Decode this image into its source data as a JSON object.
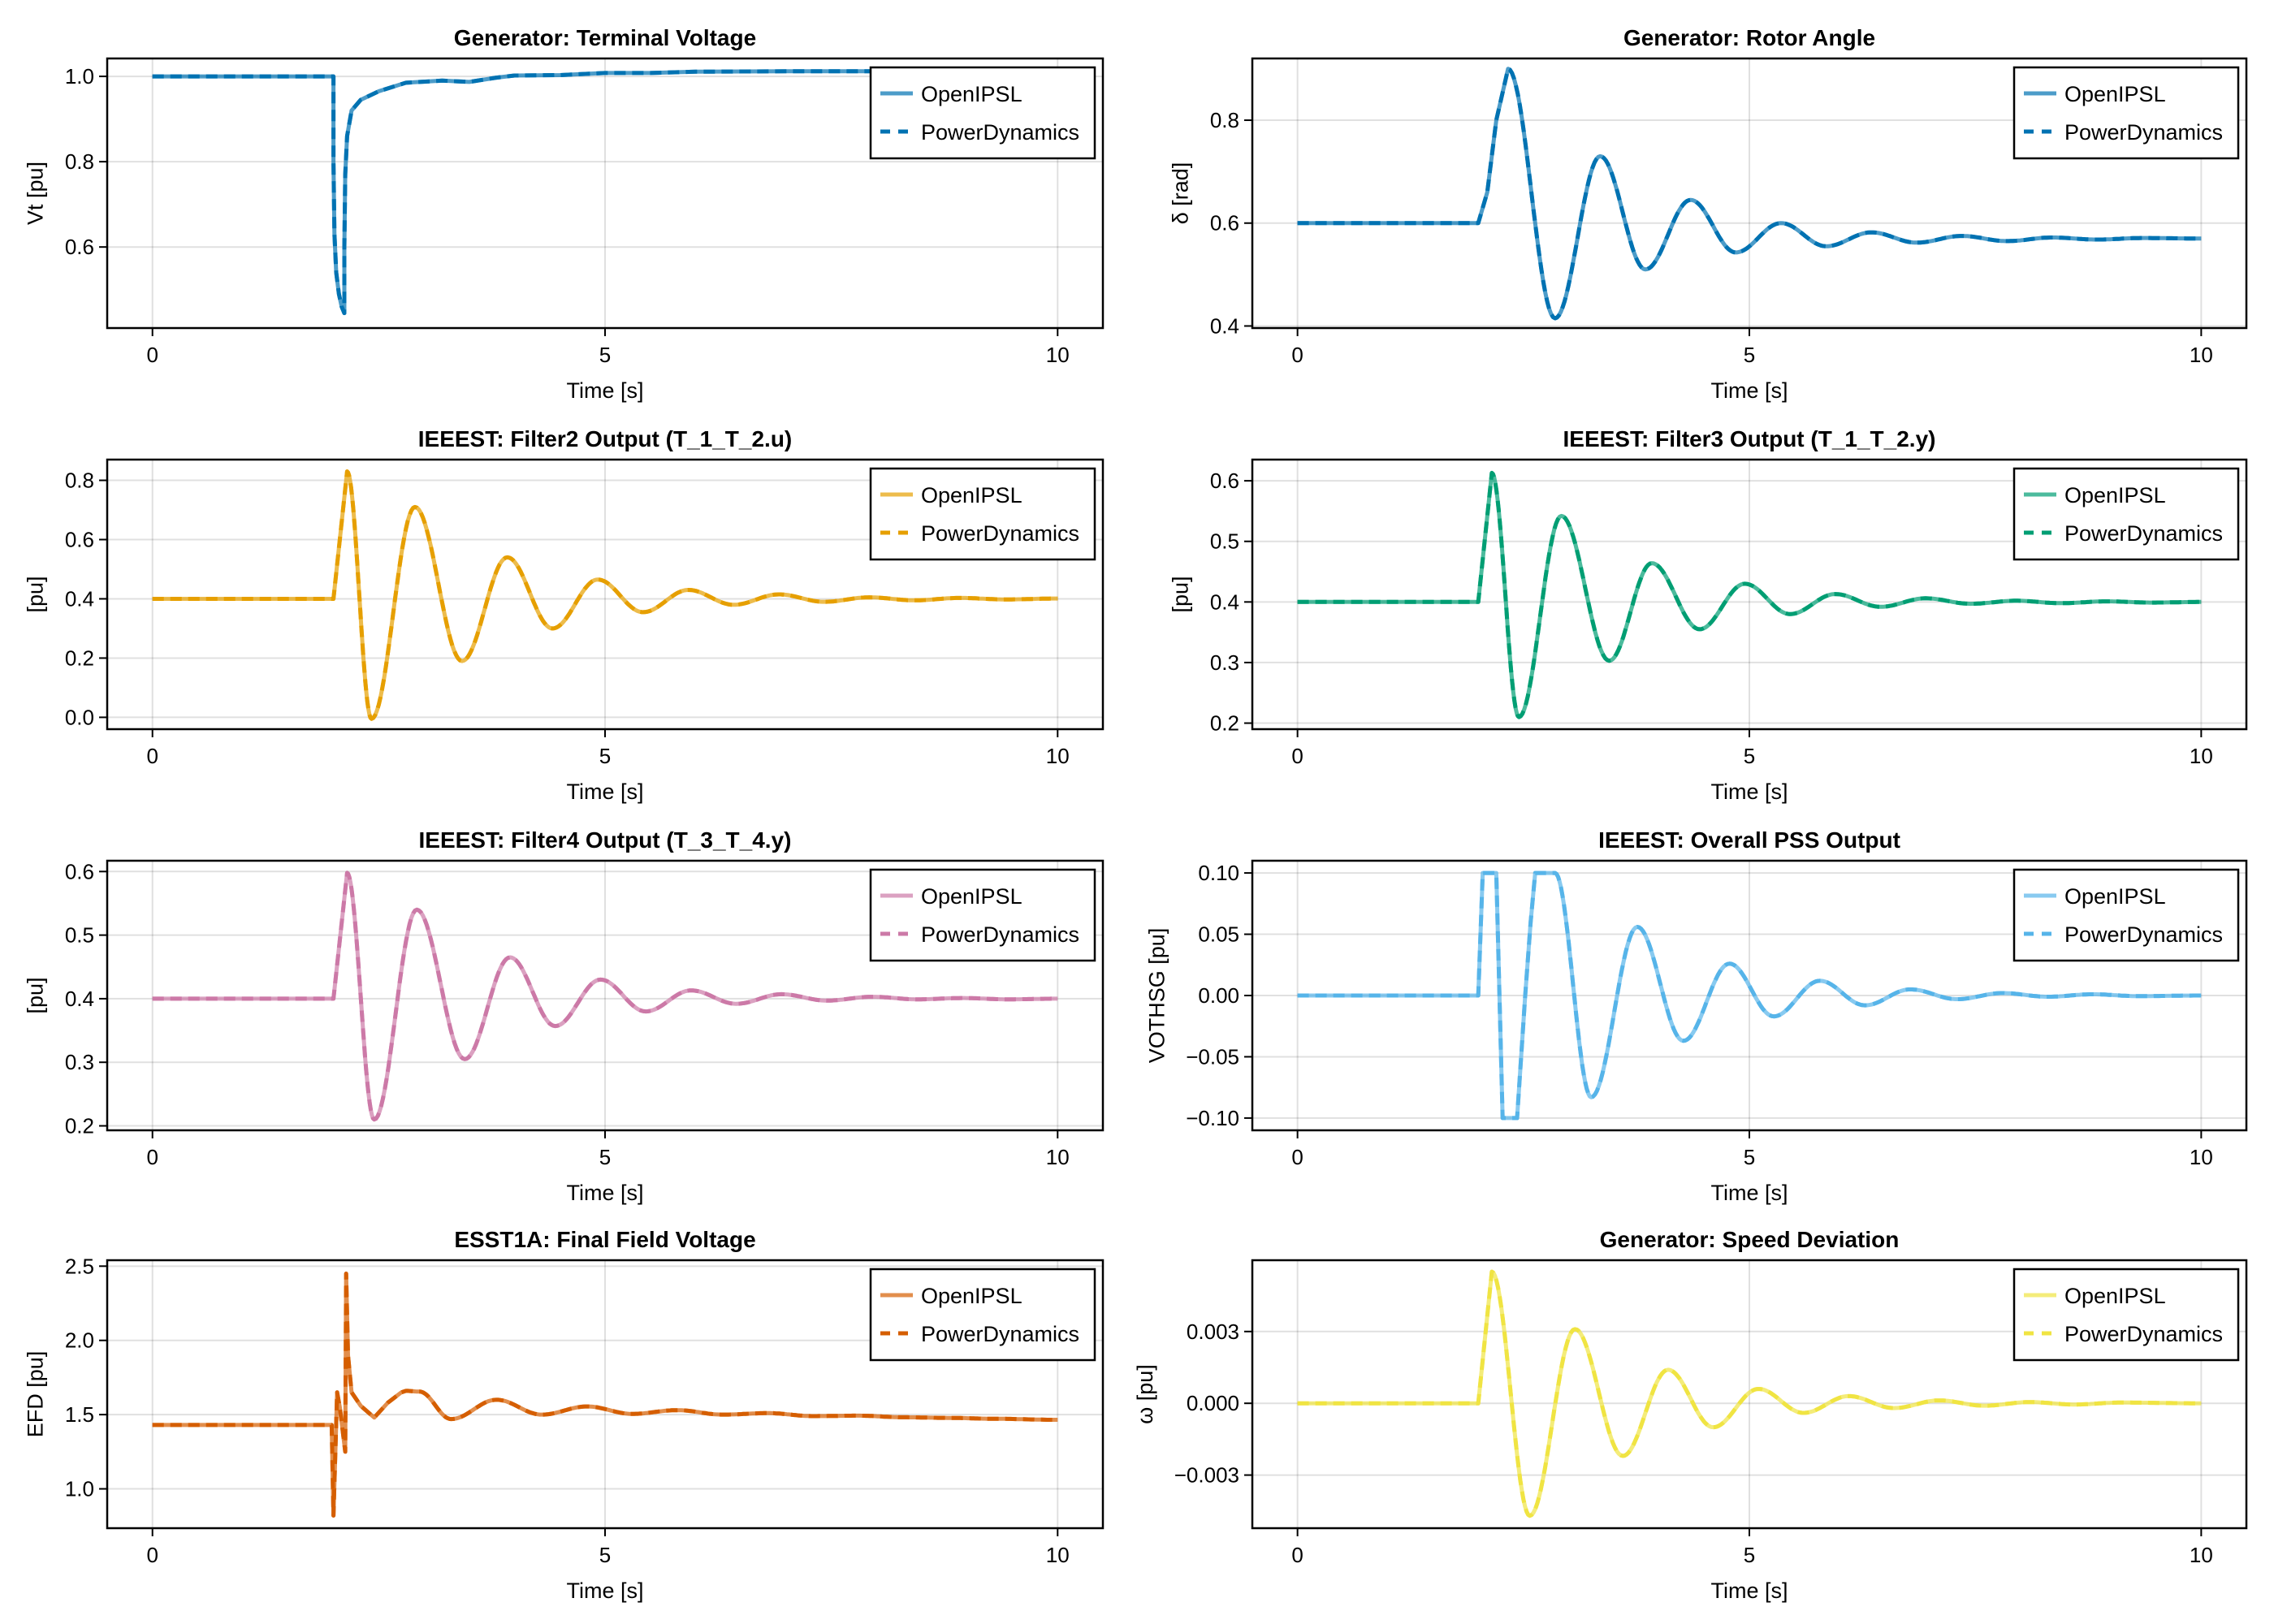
{
  "figure": {
    "layout": "4 rows x 2 columns",
    "legend_entries": [
      "OpenIPSL",
      "PowerDynamics"
    ],
    "legend_placement": "top-right"
  },
  "chart_data": [
    {
      "id": "terminal-voltage",
      "type": "line",
      "title": "Generator: Terminal Voltage",
      "xlabel": "Time [s]",
      "ylabel": "Vt [pu]",
      "xlim": [
        -0.5,
        10.5
      ],
      "ylim": [
        0.41,
        1.042
      ],
      "xticks": [
        {
          "v": 0,
          "label": "0"
        },
        {
          "v": 5,
          "label": "5"
        },
        {
          "v": 10,
          "label": "10"
        }
      ],
      "yticks": [
        {
          "v": 0.6,
          "label": "0.6"
        },
        {
          "v": 0.8,
          "label": "0.8"
        },
        {
          "v": 1.0,
          "label": "1.0"
        }
      ],
      "color": "#0072B2",
      "grid": true,
      "legend": "top-right",
      "series": [
        {
          "name": "OpenIPSL",
          "style": "solid"
        },
        {
          "name": "PowerDynamics",
          "style": "dashed"
        }
      ],
      "x": [
        0,
        2.0,
        2.0,
        2.01,
        2.03,
        2.06,
        2.09,
        2.12,
        2.12,
        2.13,
        2.15,
        2.2,
        2.3,
        2.5,
        2.8,
        3.2,
        3.5,
        3.8,
        4.0,
        4.5,
        5.0,
        5.5,
        6.0,
        7.0,
        8.0,
        9.0,
        10.0
      ],
      "y": [
        1.0,
        1.0,
        0.8,
        0.63,
        0.54,
        0.49,
        0.46,
        0.445,
        0.6,
        0.77,
        0.86,
        0.92,
        0.945,
        0.965,
        0.985,
        0.99,
        0.987,
        0.997,
        1.002,
        1.003,
        1.008,
        1.008,
        1.011,
        1.012,
        1.012,
        1.012,
        1.012
      ]
    },
    {
      "id": "rotor-angle",
      "type": "line",
      "title": "Generator: Rotor Angle",
      "xlabel": "Time [s]",
      "ylabel": "δ [rad]",
      "xlim": [
        -0.5,
        10.5
      ],
      "ylim": [
        0.396,
        0.92
      ],
      "xticks": [
        {
          "v": 0,
          "label": "0"
        },
        {
          "v": 5,
          "label": "5"
        },
        {
          "v": 10,
          "label": "10"
        }
      ],
      "yticks": [
        {
          "v": 0.4,
          "label": "0.4"
        },
        {
          "v": 0.6,
          "label": "0.6"
        },
        {
          "v": 0.8,
          "label": "0.8"
        }
      ],
      "color": "#0072B2",
      "grid": true,
      "legend": "top-right",
      "series": [
        {
          "name": "OpenIPSL",
          "style": "solid"
        },
        {
          "name": "PowerDynamics",
          "style": "dashed"
        }
      ],
      "damped": {
        "t0": 2.0,
        "base": 0.6,
        "final": 0.57,
        "rise": [
          [
            2.0,
            0.6
          ],
          [
            2.1,
            0.66
          ],
          [
            2.2,
            0.8
          ],
          [
            2.33,
            0.9
          ]
        ],
        "extrema": [
          [
            2.33,
            0.9
          ],
          [
            2.85,
            0.415
          ],
          [
            3.35,
            0.73
          ],
          [
            3.85,
            0.51
          ],
          [
            4.35,
            0.645
          ],
          [
            4.85,
            0.543
          ],
          [
            5.35,
            0.6
          ],
          [
            5.85,
            0.555
          ],
          [
            6.35,
            0.582
          ],
          [
            6.85,
            0.562
          ],
          [
            7.35,
            0.575
          ],
          [
            7.85,
            0.565
          ],
          [
            8.35,
            0.572
          ],
          [
            8.85,
            0.568
          ],
          [
            9.35,
            0.571
          ],
          [
            10.0,
            0.57
          ]
        ]
      }
    },
    {
      "id": "filter2-output",
      "type": "line",
      "title": "IEEEST: Filter2 Output (T_1_T_2.u)",
      "xlabel": "Time [s]",
      "ylabel": "[pu]",
      "xlim": [
        -0.5,
        10.5
      ],
      "ylim": [
        -0.04,
        0.87
      ],
      "xticks": [
        {
          "v": 0,
          "label": "0"
        },
        {
          "v": 5,
          "label": "5"
        },
        {
          "v": 10,
          "label": "10"
        }
      ],
      "yticks": [
        {
          "v": 0.0,
          "label": "0.0"
        },
        {
          "v": 0.2,
          "label": "0.2"
        },
        {
          "v": 0.4,
          "label": "0.4"
        },
        {
          "v": 0.6,
          "label": "0.6"
        },
        {
          "v": 0.8,
          "label": "0.8"
        }
      ],
      "color": "#E69F00",
      "grid": true,
      "legend": "top-right",
      "series": [
        {
          "name": "OpenIPSL",
          "style": "solid"
        },
        {
          "name": "PowerDynamics",
          "style": "dashed"
        }
      ],
      "damped": {
        "t0": 2.0,
        "base": 0.4,
        "final": 0.4,
        "rise": [
          [
            2.0,
            0.4
          ],
          [
            2.15,
            0.83
          ]
        ],
        "extrema": [
          [
            2.15,
            0.83
          ],
          [
            2.42,
            -0.005
          ],
          [
            2.9,
            0.71
          ],
          [
            3.42,
            0.19
          ],
          [
            3.92,
            0.54
          ],
          [
            4.42,
            0.3
          ],
          [
            4.92,
            0.465
          ],
          [
            5.42,
            0.355
          ],
          [
            5.92,
            0.43
          ],
          [
            6.42,
            0.38
          ],
          [
            6.92,
            0.415
          ],
          [
            7.42,
            0.39
          ],
          [
            7.92,
            0.405
          ],
          [
            8.42,
            0.395
          ],
          [
            8.92,
            0.403
          ],
          [
            9.42,
            0.398
          ],
          [
            10.0,
            0.401
          ]
        ]
      }
    },
    {
      "id": "filter3-output",
      "type": "line",
      "title": "IEEEST: Filter3 Output (T_1_T_2.y)",
      "xlabel": "Time [s]",
      "ylabel": "[pu]",
      "xlim": [
        -0.5,
        10.5
      ],
      "ylim": [
        0.19,
        0.635
      ],
      "xticks": [
        {
          "v": 0,
          "label": "0"
        },
        {
          "v": 5,
          "label": "5"
        },
        {
          "v": 10,
          "label": "10"
        }
      ],
      "yticks": [
        {
          "v": 0.2,
          "label": "0.2"
        },
        {
          "v": 0.3,
          "label": "0.3"
        },
        {
          "v": 0.4,
          "label": "0.4"
        },
        {
          "v": 0.5,
          "label": "0.5"
        },
        {
          "v": 0.6,
          "label": "0.6"
        }
      ],
      "color": "#009E73",
      "grid": true,
      "legend": "top-right",
      "series": [
        {
          "name": "OpenIPSL",
          "style": "solid"
        },
        {
          "name": "PowerDynamics",
          "style": "dashed"
        }
      ],
      "damped": {
        "t0": 2.0,
        "base": 0.4,
        "final": 0.4,
        "rise": [
          [
            2.0,
            0.4
          ],
          [
            2.15,
            0.613
          ]
        ],
        "extrema": [
          [
            2.15,
            0.613
          ],
          [
            2.45,
            0.21
          ],
          [
            2.92,
            0.542
          ],
          [
            3.45,
            0.303
          ],
          [
            3.92,
            0.464
          ],
          [
            4.45,
            0.355
          ],
          [
            4.95,
            0.43
          ],
          [
            5.45,
            0.38
          ],
          [
            5.95,
            0.413
          ],
          [
            6.45,
            0.392
          ],
          [
            6.95,
            0.406
          ],
          [
            7.45,
            0.397
          ],
          [
            7.95,
            0.402
          ],
          [
            8.45,
            0.398
          ],
          [
            8.95,
            0.401
          ],
          [
            9.45,
            0.399
          ],
          [
            10.0,
            0.4
          ]
        ]
      }
    },
    {
      "id": "filter4-output",
      "type": "line",
      "title": "IEEEST: Filter4 Output (T_3_T_4.y)",
      "xlabel": "Time [s]",
      "ylabel": "[pu]",
      "xlim": [
        -0.5,
        10.5
      ],
      "ylim": [
        0.193,
        0.617
      ],
      "xticks": [
        {
          "v": 0,
          "label": "0"
        },
        {
          "v": 5,
          "label": "5"
        },
        {
          "v": 10,
          "label": "10"
        }
      ],
      "yticks": [
        {
          "v": 0.2,
          "label": "0.2"
        },
        {
          "v": 0.3,
          "label": "0.3"
        },
        {
          "v": 0.4,
          "label": "0.4"
        },
        {
          "v": 0.5,
          "label": "0.5"
        },
        {
          "v": 0.6,
          "label": "0.6"
        }
      ],
      "color": "#CC79A7",
      "grid": true,
      "legend": "top-right",
      "series": [
        {
          "name": "OpenIPSL",
          "style": "solid"
        },
        {
          "name": "PowerDynamics",
          "style": "dashed"
        }
      ],
      "damped": {
        "t0": 2.0,
        "base": 0.4,
        "final": 0.4,
        "rise": [
          [
            2.0,
            0.4
          ],
          [
            2.15,
            0.598
          ]
        ],
        "extrema": [
          [
            2.15,
            0.598
          ],
          [
            2.45,
            0.21
          ],
          [
            2.92,
            0.54
          ],
          [
            3.45,
            0.305
          ],
          [
            3.95,
            0.465
          ],
          [
            4.45,
            0.357
          ],
          [
            4.95,
            0.43
          ],
          [
            5.45,
            0.38
          ],
          [
            5.95,
            0.413
          ],
          [
            6.45,
            0.392
          ],
          [
            6.95,
            0.407
          ],
          [
            7.45,
            0.397
          ],
          [
            7.95,
            0.403
          ],
          [
            8.45,
            0.399
          ],
          [
            8.95,
            0.401
          ],
          [
            9.45,
            0.399
          ],
          [
            10.0,
            0.4
          ]
        ]
      }
    },
    {
      "id": "pss-output",
      "type": "line",
      "title": "IEEEST: Overall PSS Output",
      "xlabel": "Time [s]",
      "ylabel": "VOTHSG [pu]",
      "xlim": [
        -0.5,
        10.5
      ],
      "ylim": [
        -0.11,
        0.11
      ],
      "xticks": [
        {
          "v": 0,
          "label": "0"
        },
        {
          "v": 5,
          "label": "5"
        },
        {
          "v": 10,
          "label": "10"
        }
      ],
      "yticks": [
        {
          "v": -0.1,
          "label": "−0.10"
        },
        {
          "v": -0.05,
          "label": "−0.05"
        },
        {
          "v": 0.0,
          "label": "0.00"
        },
        {
          "v": 0.05,
          "label": "0.05"
        },
        {
          "v": 0.1,
          "label": "0.10"
        }
      ],
      "color": "#56B4E9",
      "grid": true,
      "legend": "top-right",
      "series": [
        {
          "name": "OpenIPSL",
          "style": "solid"
        },
        {
          "name": "PowerDynamics",
          "style": "dashed"
        }
      ],
      "x": [
        0,
        2.0,
        2.05,
        2.2,
        2.27,
        2.43,
        2.52,
        2.58,
        2.63,
        2.7,
        2.85
      ],
      "y": [
        0.0,
        0.0,
        0.1,
        0.1,
        -0.1,
        -0.1,
        0.0,
        0.06,
        0.1,
        0.1,
        0.1
      ],
      "damped": {
        "t0": 2.85,
        "base": 0.0,
        "final": 0.0,
        "rise": [],
        "extrema": [
          [
            2.85,
            0.1
          ],
          [
            3.25,
            -0.083
          ],
          [
            3.76,
            0.056
          ],
          [
            4.27,
            -0.037
          ],
          [
            4.78,
            0.026
          ],
          [
            5.27,
            -0.017
          ],
          [
            5.78,
            0.012
          ],
          [
            6.28,
            -0.008
          ],
          [
            6.78,
            0.005
          ],
          [
            7.3,
            -0.003
          ],
          [
            7.8,
            0.002
          ],
          [
            8.3,
            -0.001
          ],
          [
            8.8,
            0.001
          ],
          [
            9.3,
            -0.0005
          ],
          [
            10.0,
            0.0
          ]
        ]
      }
    },
    {
      "id": "field-voltage",
      "type": "line",
      "title": "ESST1A: Final Field Voltage",
      "xlabel": "Time [s]",
      "ylabel": "EFD [pu]",
      "xlim": [
        -0.5,
        10.5
      ],
      "ylim": [
        0.735,
        2.54
      ],
      "xticks": [
        {
          "v": 0,
          "label": "0"
        },
        {
          "v": 5,
          "label": "5"
        },
        {
          "v": 10,
          "label": "10"
        }
      ],
      "yticks": [
        {
          "v": 1.0,
          "label": "1.0"
        },
        {
          "v": 1.5,
          "label": "1.5"
        },
        {
          "v": 2.0,
          "label": "2.0"
        },
        {
          "v": 2.5,
          "label": "2.5"
        }
      ],
      "color": "#D55E00",
      "grid": true,
      "legend": "top-right",
      "series": [
        {
          "name": "OpenIPSL",
          "style": "solid"
        },
        {
          "name": "PowerDynamics",
          "style": "dashed"
        }
      ],
      "x": [
        0,
        1.98,
        2.0,
        2.04,
        2.07,
        2.13,
        2.14,
        2.16,
        2.2,
        2.3,
        2.45,
        2.6,
        2.75,
        2.8
      ],
      "y": [
        1.43,
        1.43,
        0.82,
        1.65,
        1.55,
        1.25,
        2.45,
        1.9,
        1.65,
        1.56,
        1.48,
        1.58,
        1.65,
        1.66
      ],
      "damped": {
        "t0": 2.8,
        "base": 1.52,
        "final": 1.465,
        "rise": [],
        "extrema": [
          [
            2.8,
            1.66
          ],
          [
            2.95,
            1.655
          ],
          [
            3.3,
            1.47
          ],
          [
            3.8,
            1.6
          ],
          [
            4.3,
            1.5
          ],
          [
            4.8,
            1.555
          ],
          [
            5.3,
            1.505
          ],
          [
            5.8,
            1.53
          ],
          [
            6.3,
            1.5
          ],
          [
            6.8,
            1.51
          ],
          [
            7.3,
            1.49
          ],
          [
            7.8,
            1.493
          ],
          [
            8.3,
            1.482
          ],
          [
            8.8,
            1.478
          ],
          [
            9.3,
            1.472
          ],
          [
            10.0,
            1.465
          ]
        ]
      }
    },
    {
      "id": "speed-deviation",
      "type": "line",
      "title": "Generator: Speed Deviation",
      "xlabel": "Time [s]",
      "ylabel": "ω [pu]",
      "xlim": [
        -0.5,
        10.5
      ],
      "ylim": [
        -0.00522,
        0.00598
      ],
      "xticks": [
        {
          "v": 0,
          "label": "0"
        },
        {
          "v": 5,
          "label": "5"
        },
        {
          "v": 10,
          "label": "10"
        }
      ],
      "yticks": [
        {
          "v": -0.003,
          "label": "−0.003"
        },
        {
          "v": 0.0,
          "label": "0.000"
        },
        {
          "v": 0.003,
          "label": "0.003"
        }
      ],
      "color": "#F0E442",
      "grid": true,
      "legend": "top-right",
      "series": [
        {
          "name": "OpenIPSL",
          "style": "solid"
        },
        {
          "name": "PowerDynamics",
          "style": "dashed"
        }
      ],
      "damped": {
        "t0": 2.0,
        "base": 0.0,
        "final": 0.0,
        "rise": [
          [
            2.0,
            0.0
          ],
          [
            2.15,
            0.0055
          ]
        ],
        "extrema": [
          [
            2.15,
            0.0055
          ],
          [
            2.57,
            -0.0047
          ],
          [
            3.07,
            0.0031
          ],
          [
            3.6,
            -0.0022
          ],
          [
            4.1,
            0.0014
          ],
          [
            4.6,
            -0.001
          ],
          [
            5.1,
            0.0006
          ],
          [
            5.6,
            -0.0004
          ],
          [
            6.1,
            0.0003
          ],
          [
            6.6,
            -0.0002
          ],
          [
            7.1,
            0.00012
          ],
          [
            7.6,
            -0.0001
          ],
          [
            8.1,
            5e-05
          ],
          [
            8.6,
            -5e-05
          ],
          [
            9.1,
            3e-05
          ],
          [
            10.0,
            0.0
          ]
        ]
      }
    }
  ]
}
